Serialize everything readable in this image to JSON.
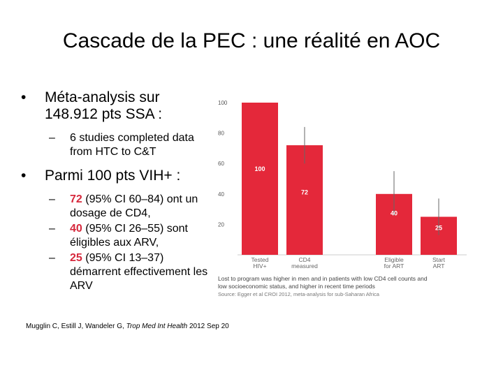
{
  "slide": {
    "title": "Cascade de la PEC : une réalité en AOC",
    "bullet1": "Méta-analysis sur 148.912 pts SSA :",
    "sub1": "6 studies completed data from HTC to C&T",
    "bullet2": "Parmi 100 pts VIH+ :",
    "items": [
      {
        "num": "72",
        "rest": " (95% CI 60–84) ont un dosage de CD4,"
      },
      {
        "num": "40",
        "rest": " (95% CI 26–55) sont éligibles aux ARV,"
      },
      {
        "num": "25",
        "rest": " (95% CI 13–37) démarrent effectivement les ARV"
      }
    ],
    "citation_pre": "Mugglin C, Estill J, Wandeler G, ",
    "citation_journal": "Trop Med Int Health",
    "citation_post": " 2012 Sep 20"
  },
  "bullet_glyph": "•",
  "dash_glyph": "–",
  "chart_data": {
    "type": "bar",
    "categories": [
      "Tested\nHIV+",
      "CD4\nmeasured",
      "",
      "Eligible\nfor ART",
      "Start\nART"
    ],
    "values": [
      100,
      72,
      null,
      40,
      25
    ],
    "data_labels": [
      "100",
      "72",
      "",
      "40",
      "25"
    ],
    "error_bars": [
      null,
      [
        60,
        84
      ],
      null,
      [
        26,
        55
      ],
      [
        13,
        37
      ]
    ],
    "ylim": [
      0,
      100
    ],
    "yticks": [
      20,
      40,
      60,
      80,
      100
    ],
    "bar_color": "#e4283a",
    "note": "Lost to program was higher in men and in patients with low CD4 cell counts and low socioeconomic status, and higher in recent time periods",
    "source": "Source: Egger et al CROI 2012, meta-analysis for sub-Saharan Africa"
  }
}
